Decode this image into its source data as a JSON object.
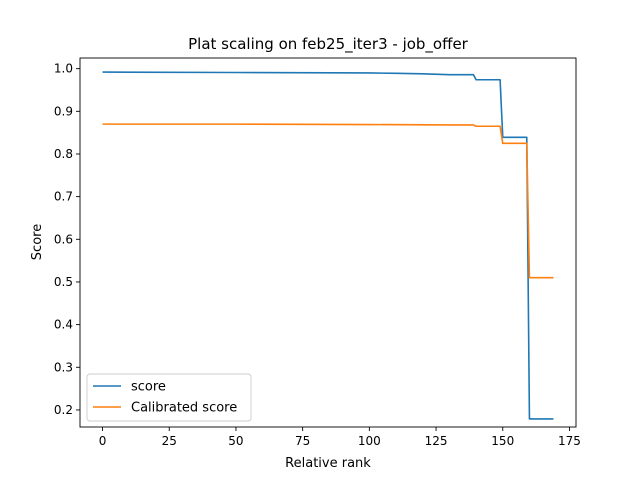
{
  "chart_data": {
    "type": "line",
    "title": "Plat scaling on feb25_iter3 - job_offer",
    "xlabel": "Relative rank",
    "ylabel": "Score",
    "xlim": [
      -8.45,
      177.45
    ],
    "ylim": [
      0.16,
      1.025
    ],
    "xticks": [
      0,
      25,
      50,
      75,
      100,
      125,
      150,
      175
    ],
    "yticks": [
      0.2,
      0.3,
      0.4,
      0.5,
      0.6,
      0.7,
      0.8,
      0.9,
      1.0
    ],
    "ytick_labels": [
      "0.2",
      "0.3",
      "0.4",
      "0.5",
      "0.6",
      "0.7",
      "0.8",
      "0.9",
      "1.0"
    ],
    "grid": false,
    "legend_position": "lower-left",
    "colors": {
      "score": "#1f77b4",
      "calibrated": "#ff7f0e"
    },
    "series": [
      {
        "name": "score",
        "color": "#1f77b4",
        "x": [
          0,
          50,
          100,
          110,
          120,
          130,
          139,
          140,
          149,
          150,
          159,
          160,
          169
        ],
        "y": [
          0.992,
          0.991,
          0.99,
          0.989,
          0.988,
          0.986,
          0.986,
          0.974,
          0.974,
          0.839,
          0.839,
          0.179,
          0.179
        ]
      },
      {
        "name": "Calibrated score",
        "color": "#ff7f0e",
        "x": [
          0,
          50,
          100,
          130,
          139,
          140,
          149,
          150,
          159,
          160,
          169
        ],
        "y": [
          0.87,
          0.87,
          0.869,
          0.868,
          0.868,
          0.865,
          0.865,
          0.825,
          0.825,
          0.51,
          0.51
        ]
      }
    ]
  }
}
